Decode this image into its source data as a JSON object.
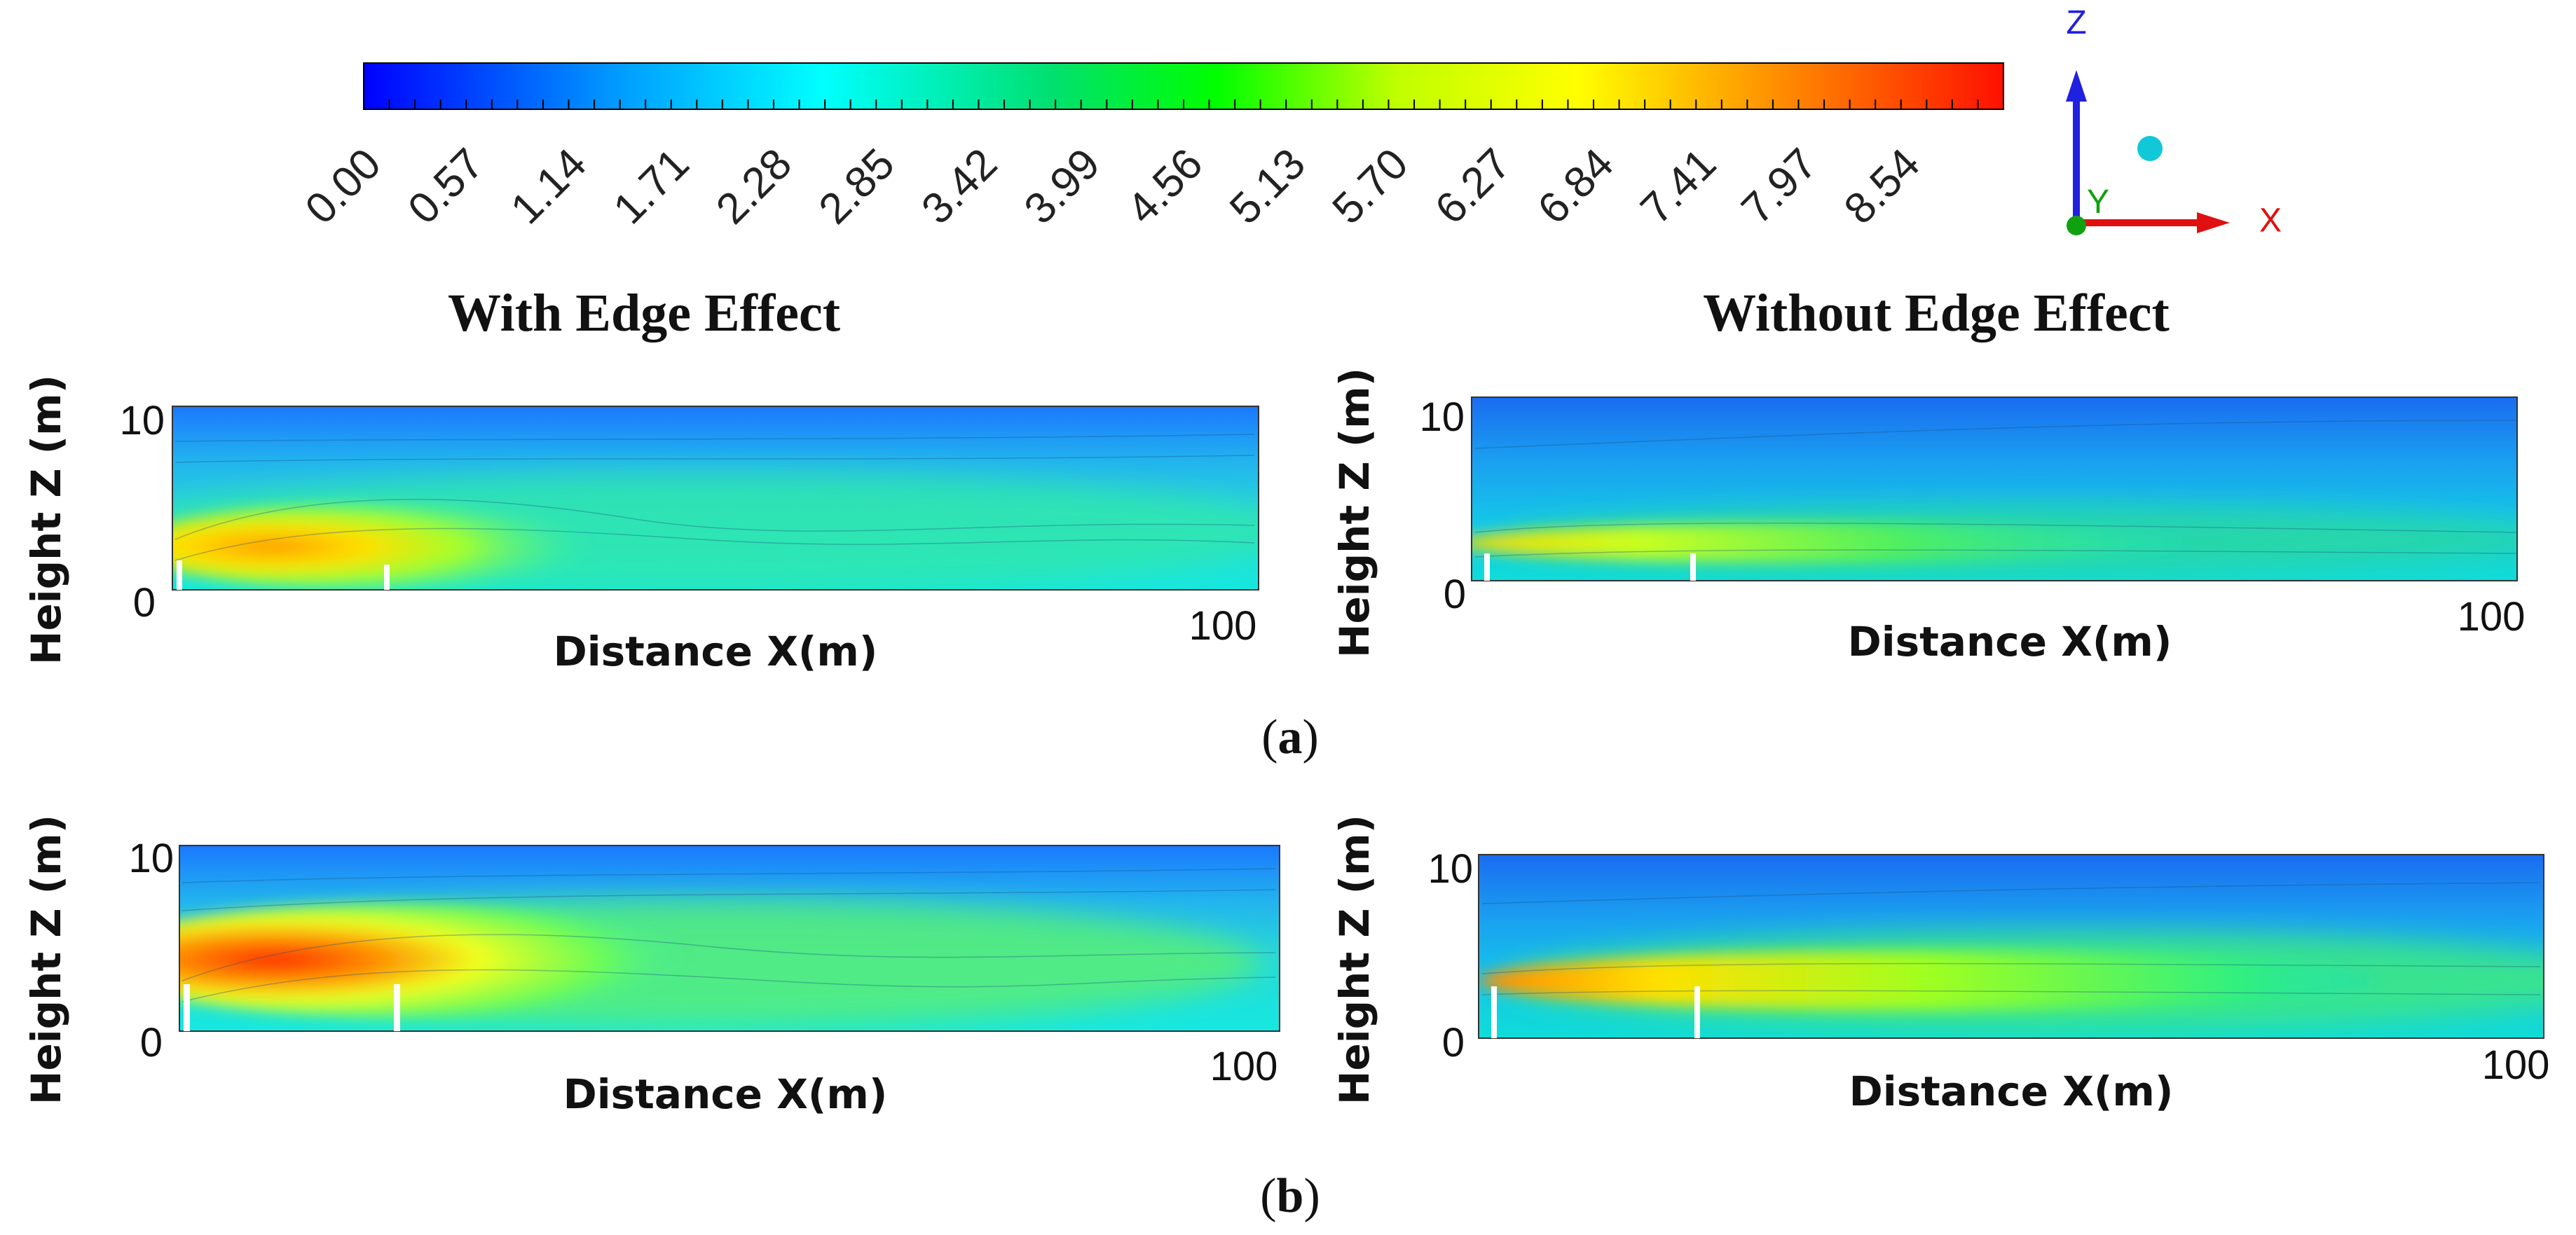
{
  "colorbar": {
    "ticks": [
      "0.00",
      "0.57",
      "1.14",
      "1.71",
      "2.28",
      "2.85",
      "3.42",
      "3.99",
      "4.56",
      "5.13",
      "5.70",
      "6.27",
      "6.84",
      "7.41",
      "7.97",
      "8.54"
    ],
    "min": 0.0,
    "max": 9.1,
    "colors": [
      "#0000ff",
      "#00a0ff",
      "#00ffff",
      "#00e060",
      "#00ff00",
      "#c0ff00",
      "#ffff00",
      "#ff9000",
      "#ff0000"
    ]
  },
  "triad": {
    "z_label": "Z",
    "x_label": "X",
    "y_label": "Y",
    "z_color": "#2020e0",
    "x_color": "#e01010",
    "y_color": "#10a010"
  },
  "column_titles": {
    "left": "With Edge Effect",
    "right": "Without Edge Effect"
  },
  "captions": {
    "a": "(a)",
    "b": "(b)"
  },
  "caption_parts": {
    "a": [
      "(",
      "a",
      ")"
    ],
    "b": [
      "(",
      "b",
      ")"
    ]
  },
  "chart_data": [
    {
      "type": "heatmap",
      "panel": "a-with-edge-effect",
      "title": "With Edge Effect",
      "xlabel": "Distance X(m)",
      "ylabel": "Height Z (m)",
      "xlim": [
        0,
        100
      ],
      "ylim": [
        0,
        10
      ],
      "xticks": [
        "100"
      ],
      "yticks": [
        "0",
        "10"
      ],
      "peak_value": 7.4,
      "fences_at_x": [
        0,
        20
      ]
    },
    {
      "type": "heatmap",
      "panel": "a-without-edge-effect",
      "title": "Without Edge Effect",
      "xlabel": "Distance X(m)",
      "ylabel": "Height Z (m)",
      "xlim": [
        0,
        100
      ],
      "ylim": [
        0,
        10
      ],
      "xticks": [
        "100"
      ],
      "yticks": [
        "0",
        "10"
      ],
      "peak_value": 6.3,
      "fences_at_x": [
        0,
        20
      ]
    },
    {
      "type": "heatmap",
      "panel": "b-with-edge-effect",
      "title": "With Edge Effect",
      "xlabel": "Distance X(m)",
      "ylabel": "Height Z (m)",
      "xlim": [
        0,
        100
      ],
      "ylim": [
        0,
        10
      ],
      "xticks": [
        "100"
      ],
      "yticks": [
        "0",
        "10"
      ],
      "peak_value": 8.8,
      "fences_at_x": [
        0,
        20
      ]
    },
    {
      "type": "heatmap",
      "panel": "b-without-edge-effect",
      "title": "Without Edge Effect",
      "xlabel": "Distance X(m)",
      "ylabel": "Height Z (m)",
      "xlim": [
        0,
        100
      ],
      "ylim": [
        0,
        10
      ],
      "xticks": [
        "100"
      ],
      "yticks": [
        "0",
        "10"
      ],
      "peak_value": 7.4,
      "fences_at_x": [
        0,
        20
      ]
    }
  ]
}
